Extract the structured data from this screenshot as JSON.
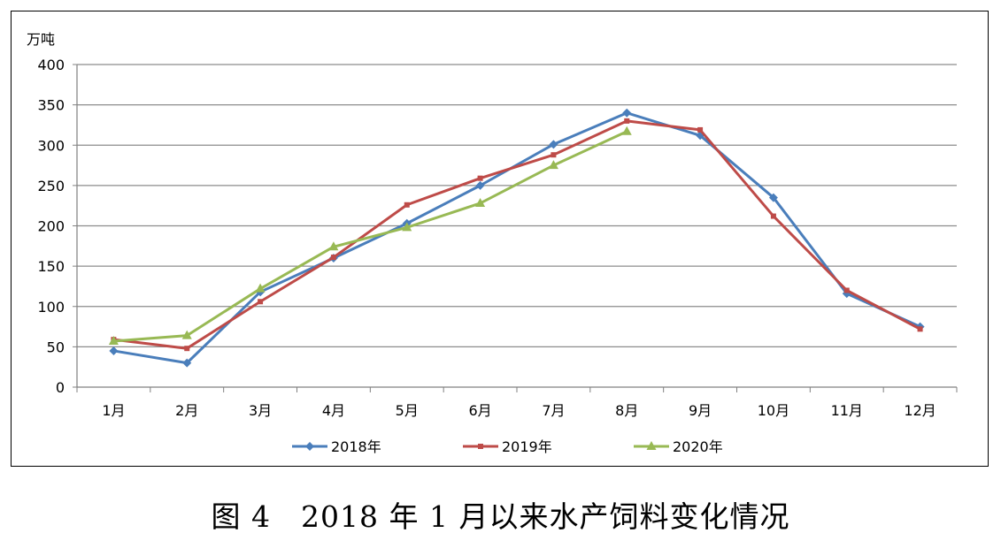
{
  "caption": "图 4　2018 年 1 月以来水产饲料变化情况",
  "chart_data": {
    "type": "line",
    "ylabel": "万吨",
    "ylim": [
      0,
      400
    ],
    "yticks": [
      0,
      50,
      100,
      150,
      200,
      250,
      300,
      350,
      400
    ],
    "grid": true,
    "legend_position": "bottom",
    "categories": [
      "1月",
      "2月",
      "3月",
      "4月",
      "5月",
      "6月",
      "7月",
      "8月",
      "9月",
      "10月",
      "11月",
      "12月"
    ],
    "series": [
      {
        "name": "2018年",
        "color": "#4A7EBB",
        "marker": "diamond",
        "values": [
          45,
          30,
          118,
          160,
          203,
          250,
          301,
          340,
          312,
          235,
          116,
          75
        ]
      },
      {
        "name": "2019年",
        "color": "#BE4B48",
        "marker": "square",
        "values": [
          59,
          48,
          106,
          161,
          226,
          259,
          288,
          330,
          319,
          212,
          120,
          72
        ]
      },
      {
        "name": "2020年",
        "color": "#98B954",
        "marker": "triangle",
        "values": [
          57,
          64,
          122,
          174,
          198,
          228,
          275,
          317,
          null,
          null,
          null,
          null
        ]
      }
    ]
  }
}
